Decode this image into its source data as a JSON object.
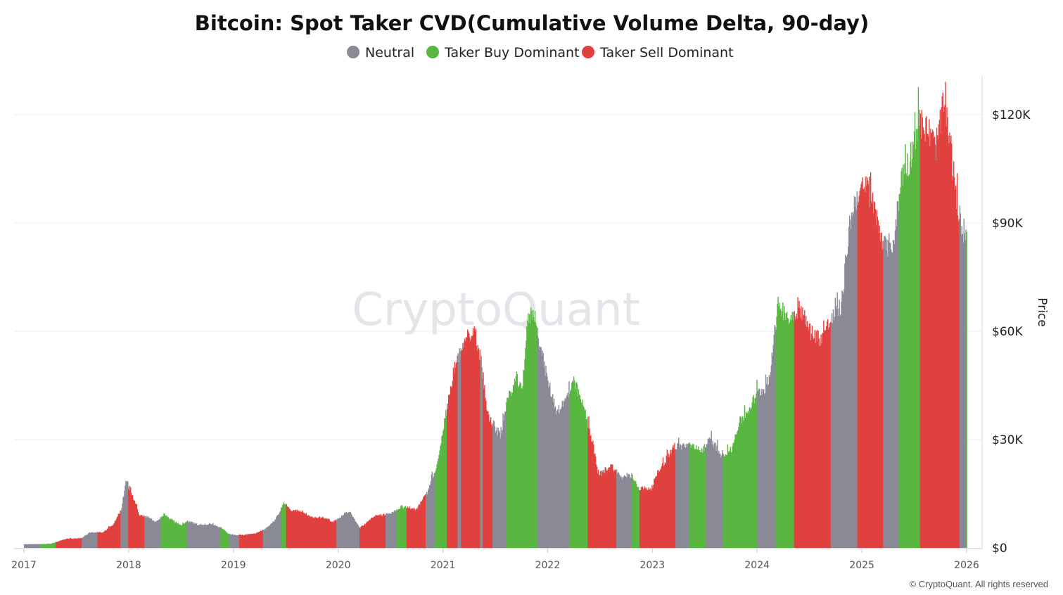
{
  "chart_data": {
    "type": "bar",
    "title": "Bitcoin: Spot Taker CVD(Cumulative Volume Delta, 90-day)",
    "ylabel": "Price",
    "xlabel": "",
    "watermark": "CryptoQuant",
    "copyright": "© CryptoQuant. All rights reserved",
    "legend": {
      "placement": "top-center",
      "items": [
        {
          "name": "Neutral",
          "color": "#8a8a97"
        },
        {
          "name": "Taker Buy Dominant",
          "color": "#59b741"
        },
        {
          "name": "Taker Sell Dominant",
          "color": "#e0413e"
        }
      ]
    },
    "colors": {
      "neutral": "#8a8a97",
      "buy": "#59b741",
      "sell": "#e0413e"
    },
    "y_axis": {
      "position": "right",
      "min": 0,
      "max": 130000,
      "ticks": [
        0,
        30000,
        60000,
        90000,
        120000
      ],
      "tick_labels": [
        "$0",
        "$30K",
        "$60K",
        "$90K",
        "$120K"
      ],
      "grid": true
    },
    "x_axis": {
      "min": 2017.0,
      "max": 2026.1,
      "ticks": [
        2017,
        2018,
        2019,
        2020,
        2021,
        2022,
        2023,
        2024,
        2025,
        2026
      ],
      "tick_labels": [
        "2017",
        "2018",
        "2019",
        "2020",
        "2021",
        "2022",
        "2023",
        "2024",
        "2025",
        "2026"
      ]
    },
    "price_points": [
      [
        2017.0,
        1000
      ],
      [
        2017.25,
        1100
      ],
      [
        2017.4,
        2500
      ],
      [
        2017.55,
        2700
      ],
      [
        2017.62,
        4200
      ],
      [
        2017.75,
        4300
      ],
      [
        2017.85,
        6500
      ],
      [
        2017.93,
        11000
      ],
      [
        2017.97,
        19000
      ],
      [
        2018.03,
        14500
      ],
      [
        2018.1,
        9000
      ],
      [
        2018.18,
        8500
      ],
      [
        2018.25,
        7000
      ],
      [
        2018.33,
        9300
      ],
      [
        2018.42,
        7500
      ],
      [
        2018.5,
        6300
      ],
      [
        2018.55,
        7500
      ],
      [
        2018.65,
        6500
      ],
      [
        2018.8,
        6400
      ],
      [
        2018.88,
        5600
      ],
      [
        2018.95,
        3800
      ],
      [
        2019.05,
        3500
      ],
      [
        2019.2,
        3900
      ],
      [
        2019.3,
        5200
      ],
      [
        2019.4,
        8000
      ],
      [
        2019.48,
        12500
      ],
      [
        2019.55,
        10500
      ],
      [
        2019.65,
        10000
      ],
      [
        2019.75,
        8300
      ],
      [
        2019.85,
        8500
      ],
      [
        2019.95,
        7200
      ],
      [
        2020.1,
        10300
      ],
      [
        2020.2,
        5500
      ],
      [
        2020.35,
        8800
      ],
      [
        2020.5,
        9500
      ],
      [
        2020.6,
        11500
      ],
      [
        2020.75,
        10700
      ],
      [
        2020.85,
        15500
      ],
      [
        2020.95,
        24000
      ],
      [
        2021.03,
        38000
      ],
      [
        2021.1,
        49000
      ],
      [
        2021.2,
        58000
      ],
      [
        2021.3,
        60000
      ],
      [
        2021.37,
        50000
      ],
      [
        2021.42,
        37000
      ],
      [
        2021.5,
        33000
      ],
      [
        2021.55,
        31000
      ],
      [
        2021.6,
        40000
      ],
      [
        2021.7,
        47000
      ],
      [
        2021.75,
        43000
      ],
      [
        2021.8,
        62000
      ],
      [
        2021.86,
        66000
      ],
      [
        2021.92,
        57000
      ],
      [
        2021.99,
        47000
      ],
      [
        2022.08,
        38000
      ],
      [
        2022.15,
        40000
      ],
      [
        2022.25,
        46000
      ],
      [
        2022.35,
        38000
      ],
      [
        2022.42,
        30000
      ],
      [
        2022.48,
        20000
      ],
      [
        2022.6,
        23000
      ],
      [
        2022.7,
        19500
      ],
      [
        2022.8,
        20000
      ],
      [
        2022.87,
        16500
      ],
      [
        2022.99,
        16500
      ],
      [
        2023.05,
        21000
      ],
      [
        2023.2,
        28000
      ],
      [
        2023.35,
        28500
      ],
      [
        2023.45,
        26500
      ],
      [
        2023.55,
        30000
      ],
      [
        2023.65,
        26000
      ],
      [
        2023.75,
        27000
      ],
      [
        2023.82,
        34500
      ],
      [
        2023.9,
        37500
      ],
      [
        2023.99,
        42500
      ],
      [
        2024.1,
        45000
      ],
      [
        2024.2,
        68000
      ],
      [
        2024.3,
        63000
      ],
      [
        2024.4,
        67000
      ],
      [
        2024.5,
        60000
      ],
      [
        2024.6,
        58000
      ],
      [
        2024.7,
        63000
      ],
      [
        2024.8,
        67000
      ],
      [
        2024.88,
        90000
      ],
      [
        2024.95,
        98000
      ],
      [
        2025.05,
        100000
      ],
      [
        2025.13,
        92000
      ],
      [
        2025.22,
        83000
      ],
      [
        2025.3,
        85000
      ],
      [
        2025.38,
        104000
      ],
      [
        2025.45,
        107000
      ],
      [
        2025.53,
        118000
      ],
      [
        2025.62,
        116000
      ],
      [
        2025.7,
        111000
      ],
      [
        2025.78,
        123000
      ],
      [
        2025.85,
        110000
      ],
      [
        2025.9,
        95000
      ],
      [
        2025.96,
        88000
      ],
      [
        2026.0,
        88000
      ]
    ],
    "state_segments": [
      [
        2017.0,
        2017.15,
        "neutral"
      ],
      [
        2017.15,
        2017.3,
        "buy"
      ],
      [
        2017.3,
        2017.55,
        "sell"
      ],
      [
        2017.55,
        2017.7,
        "neutral"
      ],
      [
        2017.7,
        2017.92,
        "sell"
      ],
      [
        2017.92,
        2017.99,
        "neutral"
      ],
      [
        2017.99,
        2018.15,
        "sell"
      ],
      [
        2018.15,
        2018.3,
        "neutral"
      ],
      [
        2018.3,
        2018.55,
        "buy"
      ],
      [
        2018.55,
        2018.87,
        "neutral"
      ],
      [
        2018.87,
        2018.95,
        "buy"
      ],
      [
        2018.95,
        2019.05,
        "neutral"
      ],
      [
        2019.05,
        2019.28,
        "sell"
      ],
      [
        2019.28,
        2019.45,
        "neutral"
      ],
      [
        2019.45,
        2019.5,
        "buy"
      ],
      [
        2019.5,
        2019.98,
        "sell"
      ],
      [
        2019.98,
        2020.2,
        "neutral"
      ],
      [
        2020.2,
        2020.45,
        "sell"
      ],
      [
        2020.45,
        2020.55,
        "neutral"
      ],
      [
        2020.55,
        2020.65,
        "buy"
      ],
      [
        2020.65,
        2020.83,
        "sell"
      ],
      [
        2020.83,
        2020.92,
        "neutral"
      ],
      [
        2020.92,
        2021.03,
        "buy"
      ],
      [
        2021.03,
        2021.14,
        "sell"
      ],
      [
        2021.14,
        2021.17,
        "neutral"
      ],
      [
        2021.17,
        2021.35,
        "sell"
      ],
      [
        2021.35,
        2021.38,
        "neutral"
      ],
      [
        2021.38,
        2021.47,
        "sell"
      ],
      [
        2021.47,
        2021.6,
        "neutral"
      ],
      [
        2021.6,
        2021.9,
        "buy"
      ],
      [
        2021.9,
        2022.2,
        "neutral"
      ],
      [
        2022.2,
        2022.38,
        "buy"
      ],
      [
        2022.38,
        2022.65,
        "sell"
      ],
      [
        2022.65,
        2022.8,
        "neutral"
      ],
      [
        2022.8,
        2022.87,
        "buy"
      ],
      [
        2022.87,
        2023.22,
        "sell"
      ],
      [
        2023.22,
        2023.35,
        "neutral"
      ],
      [
        2023.35,
        2023.5,
        "buy"
      ],
      [
        2023.5,
        2023.67,
        "neutral"
      ],
      [
        2023.67,
        2024.0,
        "buy"
      ],
      [
        2024.0,
        2024.17,
        "neutral"
      ],
      [
        2024.17,
        2024.35,
        "buy"
      ],
      [
        2024.35,
        2024.7,
        "sell"
      ],
      [
        2024.7,
        2024.95,
        "neutral"
      ],
      [
        2024.95,
        2025.2,
        "sell"
      ],
      [
        2025.2,
        2025.35,
        "neutral"
      ],
      [
        2025.35,
        2025.55,
        "buy"
      ],
      [
        2025.55,
        2025.93,
        "sell"
      ],
      [
        2025.93,
        2025.99,
        "neutral"
      ],
      [
        2025.99,
        2026.0,
        "buy"
      ]
    ]
  }
}
